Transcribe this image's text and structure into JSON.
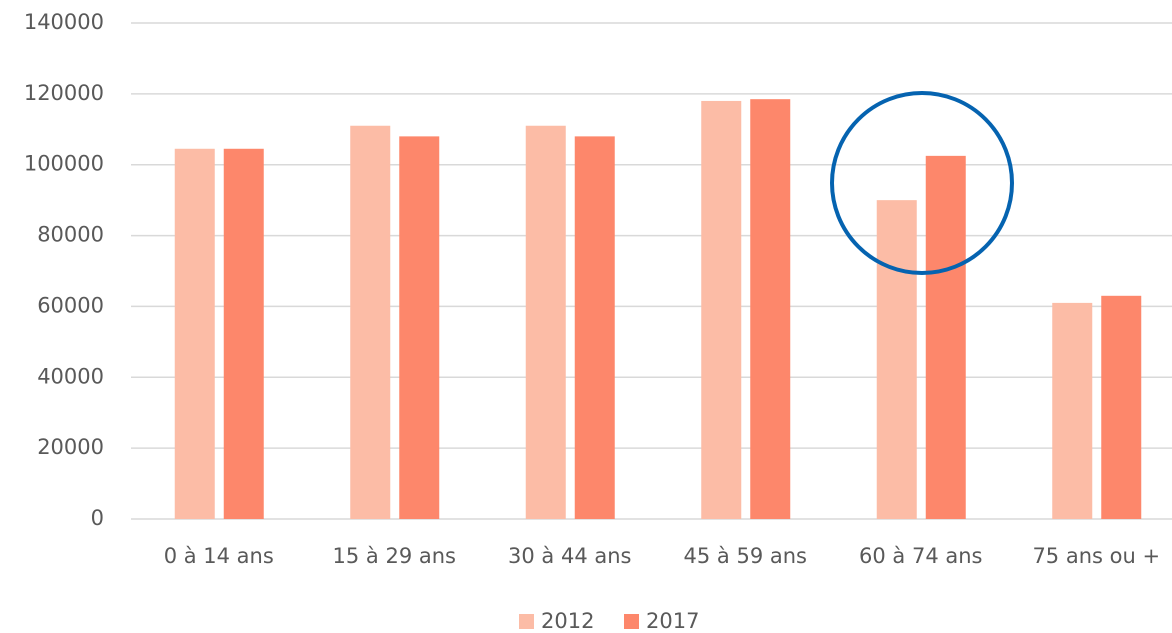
{
  "chart_data": {
    "type": "bar",
    "categories": [
      "0 à 14 ans",
      "15 à 29 ans",
      "30 à 44 ans",
      "45 à 59 ans",
      "60 à 74 ans",
      "75 ans ou +"
    ],
    "series": [
      {
        "name": "2012",
        "color": "#fcbca6",
        "values": [
          104500,
          111000,
          111000,
          118000,
          90000,
          61000
        ]
      },
      {
        "name": "2017",
        "color": "#fd876b",
        "values": [
          104500,
          108000,
          108000,
          118500,
          102500,
          63000
        ]
      }
    ],
    "ylim": [
      0,
      140000
    ],
    "yticks": [
      0,
      20000,
      40000,
      60000,
      80000,
      100000,
      120000,
      140000
    ],
    "grid": true,
    "legend": "bottom"
  }
}
